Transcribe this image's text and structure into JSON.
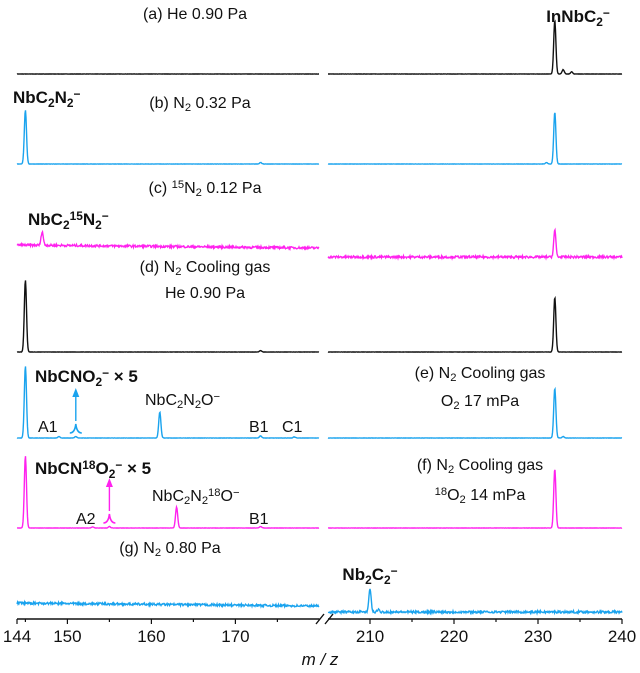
{
  "colors": {
    "black": "#111111",
    "blue": "#1aa3ee",
    "magenta": "#ff22ee"
  },
  "chart_data": {
    "type": "line",
    "xlabel": "m / z",
    "ylabel": "",
    "x_break": true,
    "x_segments": [
      [
        144,
        180
      ],
      [
        205,
        240
      ]
    ],
    "x_ticks": [
      144,
      150,
      160,
      170,
      210,
      220,
      230,
      240
    ],
    "grid": false,
    "panels": [
      {
        "id": "a",
        "color": "black",
        "noise": 0.3,
        "title": [
          [
            {
              "t": "(a) He 0.90 Pa"
            }
          ]
        ],
        "peaks": [
          [
            232,
            74
          ],
          [
            233,
            6
          ],
          [
            234,
            3
          ]
        ]
      },
      {
        "id": "b",
        "color": "blue",
        "noise": 0.3,
        "title": [
          [
            {
              "t": "(b) N"
            },
            {
              "t": "2",
              "s": "sub"
            },
            {
              "t": " 0.32 Pa"
            }
          ]
        ],
        "peaks": [
          [
            145,
            75
          ],
          [
            173,
            2
          ],
          [
            231,
            2
          ],
          [
            232,
            72
          ]
        ]
      },
      {
        "id": "c",
        "color": "magenta",
        "noise": 2.2,
        "title": [
          [
            {
              "t": "(c) "
            },
            {
              "t": "15",
              "s": "sup"
            },
            {
              "t": "N"
            },
            {
              "t": "2",
              "s": "sub"
            },
            {
              "t": " 0.12 Pa"
            }
          ]
        ],
        "peaks": [
          [
            147,
            19
          ],
          [
            232,
            37
          ]
        ]
      },
      {
        "id": "d",
        "color": "black",
        "noise": 0.3,
        "title": [
          [
            {
              "t": "(d) N"
            },
            {
              "t": "2",
              "s": "sub"
            },
            {
              "t": " Cooling gas"
            }
          ],
          [
            {
              "t": "He 0.90 Pa"
            }
          ]
        ],
        "peaks": [
          [
            145,
            100
          ],
          [
            173,
            2
          ],
          [
            232,
            76
          ]
        ]
      },
      {
        "id": "e",
        "color": "blue",
        "noise": 0.3,
        "title": [
          [
            {
              "t": "(e) N"
            },
            {
              "t": "2",
              "s": "sub"
            },
            {
              "t": " Cooling gas"
            }
          ],
          [
            {
              "t": "O"
            },
            {
              "t": "2",
              "s": "sub"
            },
            {
              "t": " 17 mPa"
            }
          ]
        ],
        "peaks": [
          [
            145,
            100
          ],
          [
            149,
            2
          ],
          [
            151,
            2
          ],
          [
            161,
            36
          ],
          [
            173,
            3
          ],
          [
            177,
            1.5
          ],
          [
            232,
            69
          ],
          [
            233,
            2
          ]
        ],
        "inset_peak": 151
      },
      {
        "id": "f",
        "color": "magenta",
        "noise": 0.3,
        "title": [
          [
            {
              "t": "(f) N"
            },
            {
              "t": "2",
              "s": "sub"
            },
            {
              "t": " Cooling gas"
            }
          ],
          [
            {
              "t": "18",
              "s": "sup"
            },
            {
              "t": "O"
            },
            {
              "t": "2",
              "s": "sub"
            },
            {
              "t": " 14 mPa"
            }
          ]
        ],
        "peaks": [
          [
            145,
            100
          ],
          [
            153,
            1.5
          ],
          [
            155,
            2
          ],
          [
            163,
            29
          ],
          [
            173,
            2
          ],
          [
            232,
            82
          ]
        ],
        "inset_peak": 155
      },
      {
        "id": "g",
        "color": "blue",
        "noise": 2.2,
        "title": [
          [
            {
              "t": "(g) N"
            },
            {
              "t": "2",
              "s": "sub"
            },
            {
              "t": " 0.80 Pa"
            }
          ]
        ],
        "peaks": [
          [
            210,
            33
          ],
          [
            211,
            3
          ]
        ]
      }
    ],
    "annotations": [
      {
        "panel": "a",
        "bold": true,
        "color": "black",
        "parts": [
          {
            "t": "InNbC"
          },
          {
            "t": "2",
            "s": "sub"
          },
          {
            "t": "−",
            "s": "sup"
          }
        ]
      },
      {
        "panel": "b",
        "bold": true,
        "color": "blue",
        "parts": [
          {
            "t": "NbC"
          },
          {
            "t": "2",
            "s": "sub"
          },
          {
            "t": "N"
          },
          {
            "t": "2",
            "s": "sub"
          },
          {
            "t": "−",
            "s": "sup"
          }
        ]
      },
      {
        "panel": "c",
        "bold": true,
        "color": "magenta",
        "parts": [
          {
            "t": "NbC"
          },
          {
            "t": "2",
            "s": "sub"
          },
          {
            "t": "15",
            "s": "sup"
          },
          {
            "t": "N"
          },
          {
            "t": "2",
            "s": "sub"
          },
          {
            "t": "−",
            "s": "sup"
          }
        ]
      },
      {
        "panel": "e",
        "bold": true,
        "color": "blue",
        "parts": [
          {
            "t": "NbCNO"
          },
          {
            "t": "2",
            "s": "sub"
          },
          {
            "t": "−",
            "s": "sup"
          },
          {
            "t": " × 5"
          }
        ]
      },
      {
        "panel": "e",
        "bold": false,
        "color": "black",
        "parts": [
          {
            "t": "A1"
          }
        ]
      },
      {
        "panel": "e",
        "bold": false,
        "color": "black",
        "parts": [
          {
            "t": "NbC"
          },
          {
            "t": "2",
            "s": "sub"
          },
          {
            "t": "N"
          },
          {
            "t": "2",
            "s": "sub"
          },
          {
            "t": "O"
          },
          {
            "t": "−",
            "s": "sup"
          }
        ]
      },
      {
        "panel": "e",
        "bold": false,
        "color": "black",
        "parts": [
          {
            "t": "B1"
          }
        ]
      },
      {
        "panel": "e",
        "bold": false,
        "color": "black",
        "parts": [
          {
            "t": "C1"
          }
        ]
      },
      {
        "panel": "f",
        "bold": true,
        "color": "blue",
        "parts": [
          {
            "t": "NbCN"
          },
          {
            "t": "18",
            "s": "sup"
          },
          {
            "t": "O"
          },
          {
            "t": "2",
            "s": "sub"
          },
          {
            "t": "−",
            "s": "sup"
          },
          {
            "t": " × 5"
          }
        ]
      },
      {
        "panel": "f",
        "bold": false,
        "color": "black",
        "parts": [
          {
            "t": "A2"
          }
        ]
      },
      {
        "panel": "f",
        "bold": false,
        "color": "black",
        "parts": [
          {
            "t": "NbC"
          },
          {
            "t": "2",
            "s": "sub"
          },
          {
            "t": "N"
          },
          {
            "t": "2",
            "s": "sub"
          },
          {
            "t": "18",
            "s": "sup"
          },
          {
            "t": "O"
          },
          {
            "t": "−",
            "s": "sup"
          }
        ]
      },
      {
        "panel": "f",
        "bold": false,
        "color": "black",
        "parts": [
          {
            "t": "B1"
          }
        ]
      },
      {
        "panel": "g",
        "bold": true,
        "color": "black",
        "parts": [
          {
            "t": "Nb"
          },
          {
            "t": "2",
            "s": "sub"
          },
          {
            "t": "C"
          },
          {
            "t": "2",
            "s": "sub"
          },
          {
            "t": "−",
            "s": "sup"
          }
        ]
      }
    ]
  }
}
